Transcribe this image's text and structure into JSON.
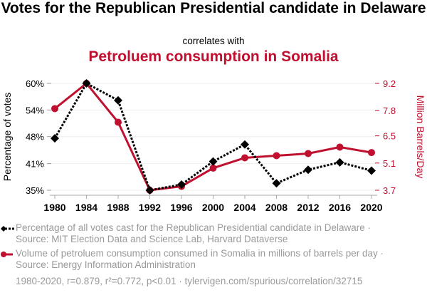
{
  "title": "Votes for the Republican Presidential candidate in Delaware",
  "correlates": "correlates with",
  "subtitle": "Petroluem consumption in Somalia",
  "legend": [
    "Percentage of all votes cast for the Republican Presidential candidate in Delaware · Source: MIT Election Data and Science Lab, Harvard Dataverse",
    "Volume of petroluem consumption consumed in Somalia in millions of barrels per day · Source: Energy Information Administration"
  ],
  "footer": "1980-2020, r=0.879, r²=0.772, p<0.01 · tylervigen.com/spurious/correlation/32715",
  "chart_data": {
    "type": "line",
    "x": [
      1980,
      1984,
      1988,
      1992,
      1996,
      2000,
      2004,
      2008,
      2012,
      2016,
      2020
    ],
    "xticks": [
      "1980",
      "1984",
      "1988",
      "1992",
      "1996",
      "2000",
      "2004",
      "2008",
      "2012",
      "2016",
      "2020"
    ],
    "ylabel": "Percentage of votes",
    "y2label": "Million Barrels/Day",
    "ylim": [
      35.3,
      59.8
    ],
    "y2lim": [
      3.7,
      9.2
    ],
    "yticks": [
      {
        "v": 59.8,
        "l": "60%"
      },
      {
        "v": 53.7,
        "l": "54%"
      },
      {
        "v": 47.6,
        "l": "48%"
      },
      {
        "v": 41.4,
        "l": "41%"
      },
      {
        "v": 35.3,
        "l": "35%"
      }
    ],
    "y2ticks": [
      {
        "v": 9.2,
        "l": "9.2"
      },
      {
        "v": 7.8,
        "l": "7.8"
      },
      {
        "v": 6.5,
        "l": "6.5"
      },
      {
        "v": 5.1,
        "l": "5.1"
      },
      {
        "v": 3.7,
        "l": "3.7"
      }
    ],
    "series": [
      {
        "name": "Republican vote share (Delaware)",
        "axis": "left",
        "color": "#000000",
        "values": [
          47.2,
          59.8,
          55.9,
          35.3,
          36.6,
          41.9,
          45.8,
          36.9,
          40.0,
          41.7,
          39.8
        ]
      },
      {
        "name": "Petroleum consumption Somalia",
        "axis": "right",
        "color": "#c0102f",
        "values": [
          7.9,
          9.2,
          7.2,
          3.7,
          3.9,
          4.84,
          5.37,
          5.48,
          5.59,
          5.92,
          5.64
        ]
      }
    ],
    "grid": true,
    "legend": "bottom"
  }
}
